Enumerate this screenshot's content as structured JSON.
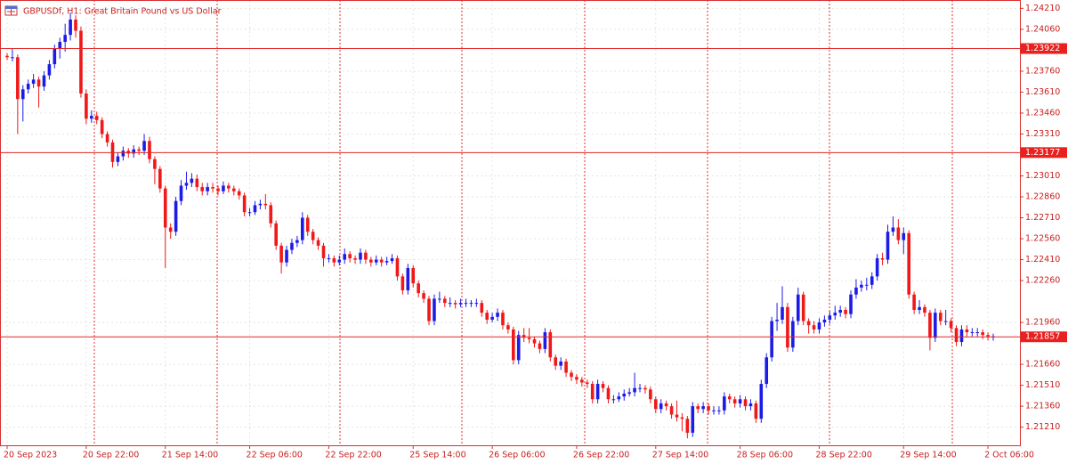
{
  "chart_data": {
    "type": "candlestick",
    "title": "GBPUSDf, H1:  Great Britain Pound vs US Dollar",
    "up_color": "#1c1ce6",
    "down_color": "#f01818",
    "grid": true,
    "ylim": [
      1.2108,
      1.2427
    ],
    "yticks": [
      {
        "value": 1.2421,
        "label": "1.24210"
      },
      {
        "value": 1.2406,
        "label": "1.24060"
      },
      {
        "value": 1.2376,
        "label": "1.23760"
      },
      {
        "value": 1.2361,
        "label": "1.23610"
      },
      {
        "value": 1.2346,
        "label": "1.23460"
      },
      {
        "value": 1.2331,
        "label": "1.23310"
      },
      {
        "value": 1.2301,
        "label": "1.23010"
      },
      {
        "value": 1.2286,
        "label": "1.22860"
      },
      {
        "value": 1.2271,
        "label": "1.22710"
      },
      {
        "value": 1.2256,
        "label": "1.22560"
      },
      {
        "value": 1.2241,
        "label": "1.22410"
      },
      {
        "value": 1.2226,
        "label": "1.22260"
      },
      {
        "value": 1.2196,
        "label": "1.21960"
      },
      {
        "value": 1.2166,
        "label": "1.21660"
      },
      {
        "value": 1.2151,
        "label": "1.21510"
      },
      {
        "value": 1.2136,
        "label": "1.21360"
      },
      {
        "value": 1.2121,
        "label": "1.21210"
      }
    ],
    "levels": [
      1.23922,
      1.23177,
      1.21857
    ],
    "categories": [
      "20 Sep 2023",
      null,
      null,
      null,
      null,
      null,
      null,
      null,
      null,
      null,
      null,
      null,
      null,
      null,
      null,
      "20 Sep 22:00",
      null,
      null,
      null,
      null,
      null,
      null,
      null,
      null,
      null,
      null,
      null,
      null,
      null,
      null,
      "21 Sep 14:00",
      null,
      null,
      null,
      null,
      null,
      null,
      null,
      null,
      null,
      null,
      null,
      null,
      null,
      null,
      null,
      "22 Sep 06:00",
      null,
      null,
      null,
      null,
      null,
      null,
      null,
      null,
      null,
      null,
      null,
      null,
      null,
      null,
      "22 Sep 22:00",
      null,
      null,
      null,
      null,
      null,
      null,
      null,
      null,
      null,
      null,
      null,
      null,
      null,
      null,
      null,
      "25 Sep 14:00",
      null,
      null,
      null,
      null,
      null,
      null,
      null,
      null,
      null,
      null,
      null,
      null,
      null,
      null,
      "26 Sep 06:00",
      null,
      null,
      null,
      null,
      null,
      null,
      null,
      null,
      null,
      null,
      null,
      null,
      null,
      null,
      null,
      "26 Sep 22:00",
      null,
      null,
      null,
      null,
      null,
      null,
      null,
      null,
      null,
      null,
      null,
      null,
      null,
      null,
      "27 Sep 14:00",
      null,
      null,
      null,
      null,
      null,
      null,
      null,
      null,
      null,
      null,
      null,
      null,
      null,
      null,
      null,
      "28 Sep 06:00",
      null,
      null,
      null,
      null,
      null,
      null,
      null,
      null,
      null,
      null,
      null,
      null,
      null,
      null,
      "28 Sep 22:00",
      null,
      null,
      null,
      null,
      null,
      null,
      null,
      null,
      null,
      null,
      null,
      null,
      null,
      null,
      null,
      "29 Sep 14:00",
      null,
      null,
      null,
      null,
      null,
      null,
      null,
      null,
      null,
      null,
      null,
      null,
      null,
      null,
      null,
      "2 Oct 06:00",
      null
    ],
    "candles": [
      [
        1.2387,
        1.2389,
        1.2384,
        1.2386
      ],
      [
        1.2386,
        1.2392,
        1.2383,
        1.2386
      ],
      [
        1.2386,
        1.2388,
        1.2331,
        1.2356
      ],
      [
        1.2356,
        1.2366,
        1.234,
        1.2363
      ],
      [
        1.2363,
        1.237,
        1.236,
        1.2367
      ],
      [
        1.2367,
        1.2374,
        1.2364,
        1.237
      ],
      [
        1.237,
        1.2372,
        1.235,
        1.2365
      ],
      [
        1.2365,
        1.2376,
        1.2362,
        1.2373
      ],
      [
        1.2373,
        1.2384,
        1.237,
        1.2381
      ],
      [
        1.2381,
        1.2395,
        1.2378,
        1.2392
      ],
      [
        1.2392,
        1.24,
        1.2385,
        1.2397
      ],
      [
        1.2397,
        1.241,
        1.239,
        1.2402
      ],
      [
        1.2402,
        1.2418,
        1.2398,
        1.2413
      ],
      [
        1.2413,
        1.2416,
        1.24,
        1.2405
      ],
      [
        1.2405,
        1.2408,
        1.2357,
        1.236
      ],
      [
        1.236,
        1.2363,
        1.2338,
        1.2342
      ],
      [
        1.2342,
        1.2348,
        1.2339,
        1.2344
      ],
      [
        1.2344,
        1.2347,
        1.2338,
        1.2341
      ],
      [
        1.2341,
        1.2343,
        1.2328,
        1.2331
      ],
      [
        1.2331,
        1.2333,
        1.2322,
        1.2325
      ],
      [
        1.2325,
        1.2327,
        1.2307,
        1.2311
      ],
      [
        1.2311,
        1.2318,
        1.2308,
        1.2315
      ],
      [
        1.2315,
        1.2322,
        1.2312,
        1.2319
      ],
      [
        1.2319,
        1.2321,
        1.2314,
        1.2317
      ],
      [
        1.2317,
        1.2323,
        1.2314,
        1.232
      ],
      [
        1.232,
        1.2322,
        1.2316,
        1.2319
      ],
      [
        1.2319,
        1.2331,
        1.2316,
        1.2326
      ],
      [
        1.2326,
        1.2329,
        1.231,
        1.2313
      ],
      [
        1.2313,
        1.2315,
        1.2295,
        1.2306
      ],
      [
        1.2306,
        1.2308,
        1.2289,
        1.2292
      ],
      [
        1.2292,
        1.2294,
        1.2235,
        1.2264
      ],
      [
        1.2264,
        1.2267,
        1.2256,
        1.2261
      ],
      [
        1.2261,
        1.2286,
        1.2258,
        1.2283
      ],
      [
        1.2283,
        1.2298,
        1.228,
        1.2294
      ],
      [
        1.2294,
        1.2304,
        1.2291,
        1.2296
      ],
      [
        1.2296,
        1.2303,
        1.2293,
        1.2299
      ],
      [
        1.2299,
        1.2302,
        1.229,
        1.2293
      ],
      [
        1.2293,
        1.2296,
        1.2287,
        1.229
      ],
      [
        1.229,
        1.2296,
        1.2287,
        1.2293
      ],
      [
        1.2293,
        1.2296,
        1.2289,
        1.2292
      ],
      [
        1.2292,
        1.2294,
        1.2287,
        1.229
      ],
      [
        1.229,
        1.2297,
        1.2288,
        1.2294
      ],
      [
        1.2294,
        1.2296,
        1.2289,
        1.2292
      ],
      [
        1.2292,
        1.2294,
        1.2287,
        1.229
      ],
      [
        1.229,
        1.2292,
        1.2284,
        1.2287
      ],
      [
        1.2287,
        1.2289,
        1.2272,
        1.2275
      ],
      [
        1.2275,
        1.2278,
        1.2272,
        1.2275
      ],
      [
        1.2275,
        1.2283,
        1.2273,
        1.228
      ],
      [
        1.228,
        1.2284,
        1.2277,
        1.2281
      ],
      [
        1.2281,
        1.2288,
        1.2277,
        1.228
      ],
      [
        1.228,
        1.2282,
        1.2264,
        1.2267
      ],
      [
        1.2267,
        1.2269,
        1.2248,
        1.2251
      ],
      [
        1.2251,
        1.2253,
        1.2231,
        1.2239
      ],
      [
        1.2239,
        1.2251,
        1.2236,
        1.2248
      ],
      [
        1.2248,
        1.2256,
        1.2245,
        1.2253
      ],
      [
        1.2253,
        1.2258,
        1.225,
        1.2255
      ],
      [
        1.2255,
        1.2275,
        1.2252,
        1.2271
      ],
      [
        1.2271,
        1.2273,
        1.2258,
        1.2261
      ],
      [
        1.2261,
        1.2263,
        1.2252,
        1.2255
      ],
      [
        1.2255,
        1.2257,
        1.2248,
        1.2251
      ],
      [
        1.2251,
        1.2253,
        1.2236,
        1.2242
      ],
      [
        1.2242,
        1.2245,
        1.2239,
        1.2242
      ],
      [
        1.2242,
        1.2244,
        1.2236,
        1.2239
      ],
      [
        1.2239,
        1.2244,
        1.2237,
        1.2241
      ],
      [
        1.2241,
        1.2249,
        1.2238,
        1.2245
      ],
      [
        1.2245,
        1.2247,
        1.2239,
        1.2242
      ],
      [
        1.2242,
        1.2244,
        1.2238,
        1.2241
      ],
      [
        1.2241,
        1.2249,
        1.2238,
        1.2246
      ],
      [
        1.2246,
        1.2248,
        1.2238,
        1.2241
      ],
      [
        1.2241,
        1.2243,
        1.2236,
        1.2239
      ],
      [
        1.2239,
        1.2244,
        1.2237,
        1.2241
      ],
      [
        1.2241,
        1.2243,
        1.2236,
        1.2239
      ],
      [
        1.2239,
        1.2243,
        1.2237,
        1.224
      ],
      [
        1.224,
        1.2245,
        1.2238,
        1.2242
      ],
      [
        1.2242,
        1.2244,
        1.2226,
        1.2229
      ],
      [
        1.2229,
        1.2231,
        1.2216,
        1.2219
      ],
      [
        1.2219,
        1.2238,
        1.2216,
        1.2235
      ],
      [
        1.2235,
        1.2237,
        1.2221,
        1.2224
      ],
      [
        1.2224,
        1.2226,
        1.2214,
        1.2217
      ],
      [
        1.2217,
        1.2219,
        1.221,
        1.2213
      ],
      [
        1.2213,
        1.2215,
        1.2194,
        1.2197
      ],
      [
        1.2197,
        1.2216,
        1.2194,
        1.2213
      ],
      [
        1.2213,
        1.2218,
        1.221,
        1.2213
      ],
      [
        1.2213,
        1.2215,
        1.2207,
        1.221
      ],
      [
        1.221,
        1.2214,
        1.2207,
        1.221
      ],
      [
        1.221,
        1.2212,
        1.2206,
        1.2209
      ],
      [
        1.2209,
        1.2213,
        1.2207,
        1.221
      ],
      [
        1.221,
        1.2213,
        1.2207,
        1.221
      ],
      [
        1.221,
        1.2212,
        1.2207,
        1.221
      ],
      [
        1.221,
        1.2213,
        1.2207,
        1.221
      ],
      [
        1.221,
        1.2212,
        1.22,
        1.2203
      ],
      [
        1.2203,
        1.2205,
        1.2195,
        1.2198
      ],
      [
        1.2198,
        1.2203,
        1.2196,
        1.22
      ],
      [
        1.22,
        1.2206,
        1.2197,
        1.2203
      ],
      [
        1.2203,
        1.2205,
        1.2191,
        1.2194
      ],
      [
        1.2194,
        1.2196,
        1.2188,
        1.2191
      ],
      [
        1.2191,
        1.2193,
        1.2166,
        1.2169
      ],
      [
        1.2169,
        1.219,
        1.2166,
        1.2187
      ],
      [
        1.2187,
        1.2192,
        1.2182,
        1.2185
      ],
      [
        1.2185,
        1.2192,
        1.2181,
        1.2184
      ],
      [
        1.2184,
        1.2186,
        1.2178,
        1.2181
      ],
      [
        1.2181,
        1.2183,
        1.2174,
        1.2177
      ],
      [
        1.2177,
        1.2192,
        1.2174,
        1.2189
      ],
      [
        1.2189,
        1.2191,
        1.2168,
        1.2171
      ],
      [
        1.2171,
        1.2173,
        1.2162,
        1.2165
      ],
      [
        1.2165,
        1.2171,
        1.2162,
        1.2168
      ],
      [
        1.2168,
        1.217,
        1.2157,
        1.216
      ],
      [
        1.216,
        1.2162,
        1.2154,
        1.2157
      ],
      [
        1.2157,
        1.2159,
        1.2152,
        1.2155
      ],
      [
        1.2155,
        1.2157,
        1.215,
        1.2153
      ],
      [
        1.2153,
        1.2155,
        1.2149,
        1.2152
      ],
      [
        1.2152,
        1.2154,
        1.2138,
        1.2141
      ],
      [
        1.2141,
        1.2155,
        1.2138,
        1.2152
      ],
      [
        1.2152,
        1.2154,
        1.2146,
        1.2149
      ],
      [
        1.2149,
        1.2151,
        1.2138,
        1.2141
      ],
      [
        1.2141,
        1.2144,
        1.2138,
        1.2141
      ],
      [
        1.2141,
        1.2146,
        1.2139,
        1.2143
      ],
      [
        1.2143,
        1.2148,
        1.214,
        1.2145
      ],
      [
        1.2145,
        1.2149,
        1.2143,
        1.2146
      ],
      [
        1.2146,
        1.216,
        1.2143,
        1.2149
      ],
      [
        1.2149,
        1.2152,
        1.2146,
        1.2149
      ],
      [
        1.2149,
        1.2151,
        1.2145,
        1.2148
      ],
      [
        1.2148,
        1.215,
        1.2138,
        1.2141
      ],
      [
        1.2141,
        1.2143,
        1.2131,
        1.2134
      ],
      [
        1.2134,
        1.2141,
        1.2131,
        1.2138
      ],
      [
        1.2138,
        1.214,
        1.2133,
        1.2136
      ],
      [
        1.2136,
        1.2138,
        1.2127,
        1.213
      ],
      [
        1.213,
        1.214,
        1.2125,
        1.2128
      ],
      [
        1.2128,
        1.2131,
        1.2118,
        1.2127
      ],
      [
        1.2127,
        1.2129,
        1.2113,
        1.2117
      ],
      [
        1.2117,
        1.2139,
        1.2114,
        1.2136
      ],
      [
        1.2136,
        1.2138,
        1.2131,
        1.2134
      ],
      [
        1.2134,
        1.2139,
        1.2131,
        1.2136
      ],
      [
        1.2136,
        1.2138,
        1.213,
        1.2133
      ],
      [
        1.2133,
        1.2136,
        1.213,
        1.2133
      ],
      [
        1.2133,
        1.2136,
        1.213,
        1.2133
      ],
      [
        1.2133,
        1.2146,
        1.213,
        1.2143
      ],
      [
        1.2143,
        1.2145,
        1.2138,
        1.2141
      ],
      [
        1.2141,
        1.2143,
        1.2135,
        1.2138
      ],
      [
        1.2138,
        1.2144,
        1.2135,
        1.2141
      ],
      [
        1.2141,
        1.2143,
        1.2133,
        1.2136
      ],
      [
        1.2136,
        1.2141,
        1.2133,
        1.2138
      ],
      [
        1.2138,
        1.214,
        1.2124,
        1.2127
      ],
      [
        1.2127,
        1.2155,
        1.2124,
        1.2152
      ],
      [
        1.2152,
        1.2174,
        1.2149,
        1.2171
      ],
      [
        1.2171,
        1.22,
        1.2168,
        1.2197
      ],
      [
        1.2197,
        1.221,
        1.219,
        1.2198
      ],
      [
        1.2198,
        1.2222,
        1.2195,
        1.2207
      ],
      [
        1.2207,
        1.221,
        1.2175,
        1.2178
      ],
      [
        1.2178,
        1.22,
        1.2175,
        1.2197
      ],
      [
        1.2197,
        1.2221,
        1.2194,
        1.2216
      ],
      [
        1.2216,
        1.2218,
        1.2194,
        1.2197
      ],
      [
        1.2197,
        1.2199,
        1.2188,
        1.2194
      ],
      [
        1.2194,
        1.2197,
        1.2188,
        1.2191
      ],
      [
        1.2191,
        1.2199,
        1.2188,
        1.2196
      ],
      [
        1.2196,
        1.2201,
        1.2193,
        1.2198
      ],
      [
        1.2198,
        1.2204,
        1.2195,
        1.2201
      ],
      [
        1.2201,
        1.2208,
        1.2198,
        1.2203
      ],
      [
        1.2203,
        1.2208,
        1.22,
        1.2205
      ],
      [
        1.2205,
        1.2207,
        1.2199,
        1.2202
      ],
      [
        1.2202,
        1.2219,
        1.2199,
        1.2216
      ],
      [
        1.2216,
        1.2227,
        1.2213,
        1.2221
      ],
      [
        1.2221,
        1.2226,
        1.2218,
        1.2223
      ],
      [
        1.2223,
        1.2228,
        1.2219,
        1.2223
      ],
      [
        1.2223,
        1.2232,
        1.222,
        1.2229
      ],
      [
        1.2229,
        1.2245,
        1.2226,
        1.2242
      ],
      [
        1.2242,
        1.2246,
        1.2237,
        1.2241
      ],
      [
        1.2241,
        1.2266,
        1.2238,
        1.2261
      ],
      [
        1.2261,
        1.2272,
        1.2258,
        1.2264
      ],
      [
        1.2264,
        1.227,
        1.2252,
        1.2255
      ],
      [
        1.2255,
        1.2264,
        1.2245,
        1.226
      ],
      [
        1.226,
        1.2262,
        1.2213,
        1.2216
      ],
      [
        1.2216,
        1.2218,
        1.2202,
        1.2205
      ],
      [
        1.2205,
        1.2212,
        1.2202,
        1.2207
      ],
      [
        1.2207,
        1.2209,
        1.22,
        1.2203
      ],
      [
        1.2203,
        1.2205,
        1.2176,
        1.2185
      ],
      [
        1.2185,
        1.2206,
        1.2182,
        1.2203
      ],
      [
        1.2203,
        1.2205,
        1.2194,
        1.2197
      ],
      [
        1.2197,
        1.2205,
        1.2194,
        1.2197
      ],
      [
        1.2197,
        1.2199,
        1.2189,
        1.2192
      ],
      [
        1.2192,
        1.2194,
        1.2179,
        1.2182
      ],
      [
        1.2182,
        1.2194,
        1.2179,
        1.2191
      ],
      [
        1.2191,
        1.2194,
        1.2186,
        1.2189
      ],
      [
        1.2189,
        1.2192,
        1.2186,
        1.2189
      ],
      [
        1.2189,
        1.2192,
        1.2186,
        1.2189
      ],
      [
        1.2189,
        1.2191,
        1.2184,
        1.2187
      ],
      [
        1.2187,
        1.2189,
        1.2183,
        1.2186
      ],
      [
        1.2186,
        1.2188,
        1.2183,
        1.2186
      ]
    ]
  }
}
